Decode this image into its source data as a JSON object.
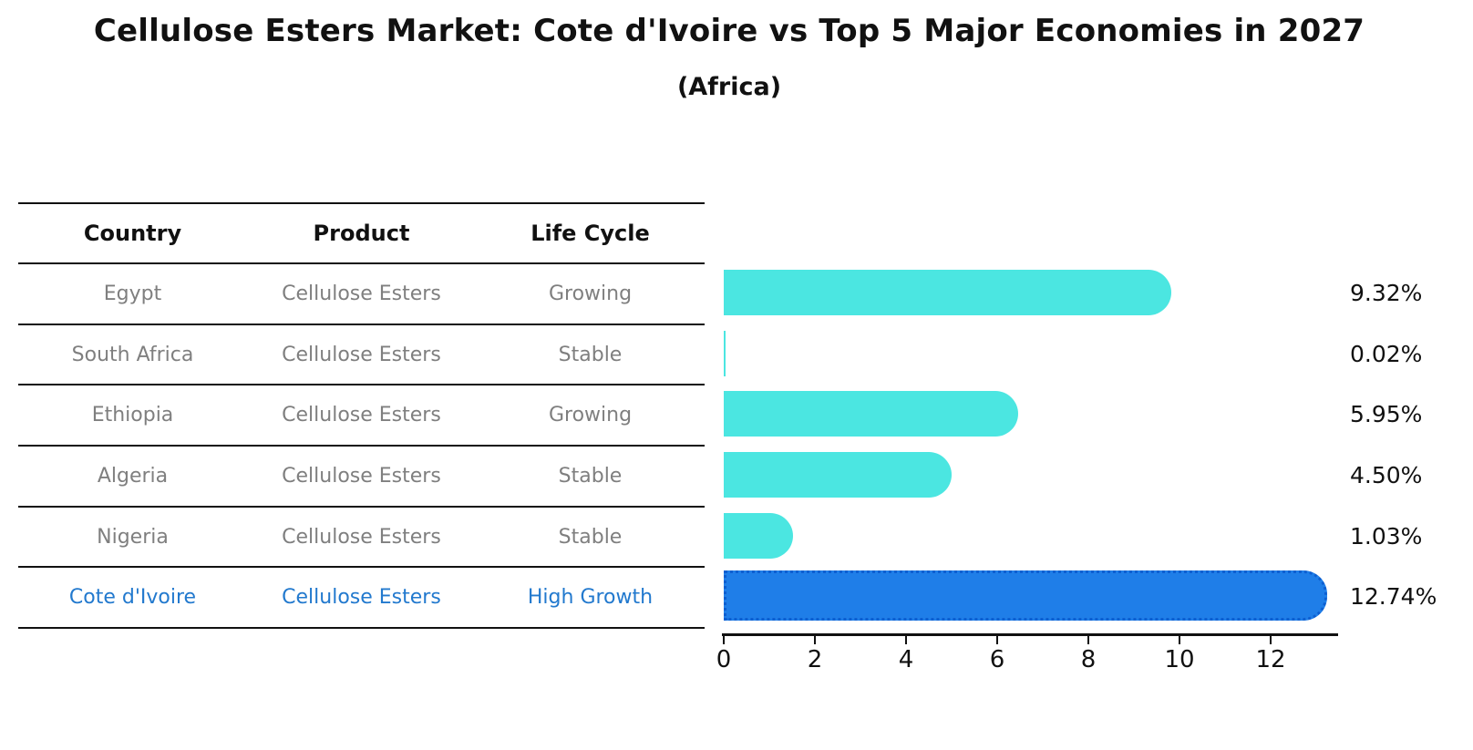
{
  "title": "Cellulose Esters Market: Cote d'Ivoire vs Top 5 Major Economies in 2027",
  "subtitle": "(Africa)",
  "table": {
    "headers": [
      "Country",
      "Product",
      "Life Cycle"
    ],
    "rows": [
      {
        "country": "Egypt",
        "product": "Cellulose Esters",
        "life_cycle": "Growing",
        "highlight": false
      },
      {
        "country": "South Africa",
        "product": "Cellulose Esters",
        "life_cycle": "Stable",
        "highlight": false
      },
      {
        "country": "Ethiopia",
        "product": "Cellulose Esters",
        "life_cycle": "Growing",
        "highlight": false
      },
      {
        "country": "Algeria",
        "product": "Cellulose Esters",
        "life_cycle": "Stable",
        "highlight": false
      },
      {
        "country": "Nigeria",
        "product": "Cellulose Esters",
        "life_cycle": "Stable",
        "highlight": false
      },
      {
        "country": "Cote d'Ivoire",
        "product": "Cellulose Esters",
        "life_cycle": "High Growth",
        "highlight": true
      }
    ]
  },
  "chart_data": {
    "type": "bar",
    "orientation": "horizontal",
    "title": "Cellulose Esters Market: Cote d'Ivoire vs Top 5 Major Economies in 2027",
    "subtitle": "(Africa)",
    "categories": [
      "Egypt",
      "South Africa",
      "Ethiopia",
      "Algeria",
      "Nigeria",
      "Cote d'Ivoire"
    ],
    "values": [
      9.32,
      0.02,
      5.95,
      4.5,
      1.03,
      12.74
    ],
    "value_labels": [
      "9.32%",
      "0.02%",
      "5.95%",
      "4.50%",
      "1.03%",
      "12.74%"
    ],
    "highlight_index": 5,
    "x_ticks": [
      0,
      2,
      4,
      6,
      8,
      10,
      12
    ],
    "x_tick_labels": [
      "0",
      "2",
      "4",
      "6",
      "8",
      "10",
      "12"
    ],
    "xlim": [
      0,
      13.48
    ],
    "grid": false,
    "legend": false,
    "bar_color": "#4be6e1",
    "highlight_bar_color": "#1f7ee8",
    "highlight_border_color": "#0d5fd1",
    "highlight_text_color": "#2279ce",
    "text_color": "#7f7f7f"
  }
}
